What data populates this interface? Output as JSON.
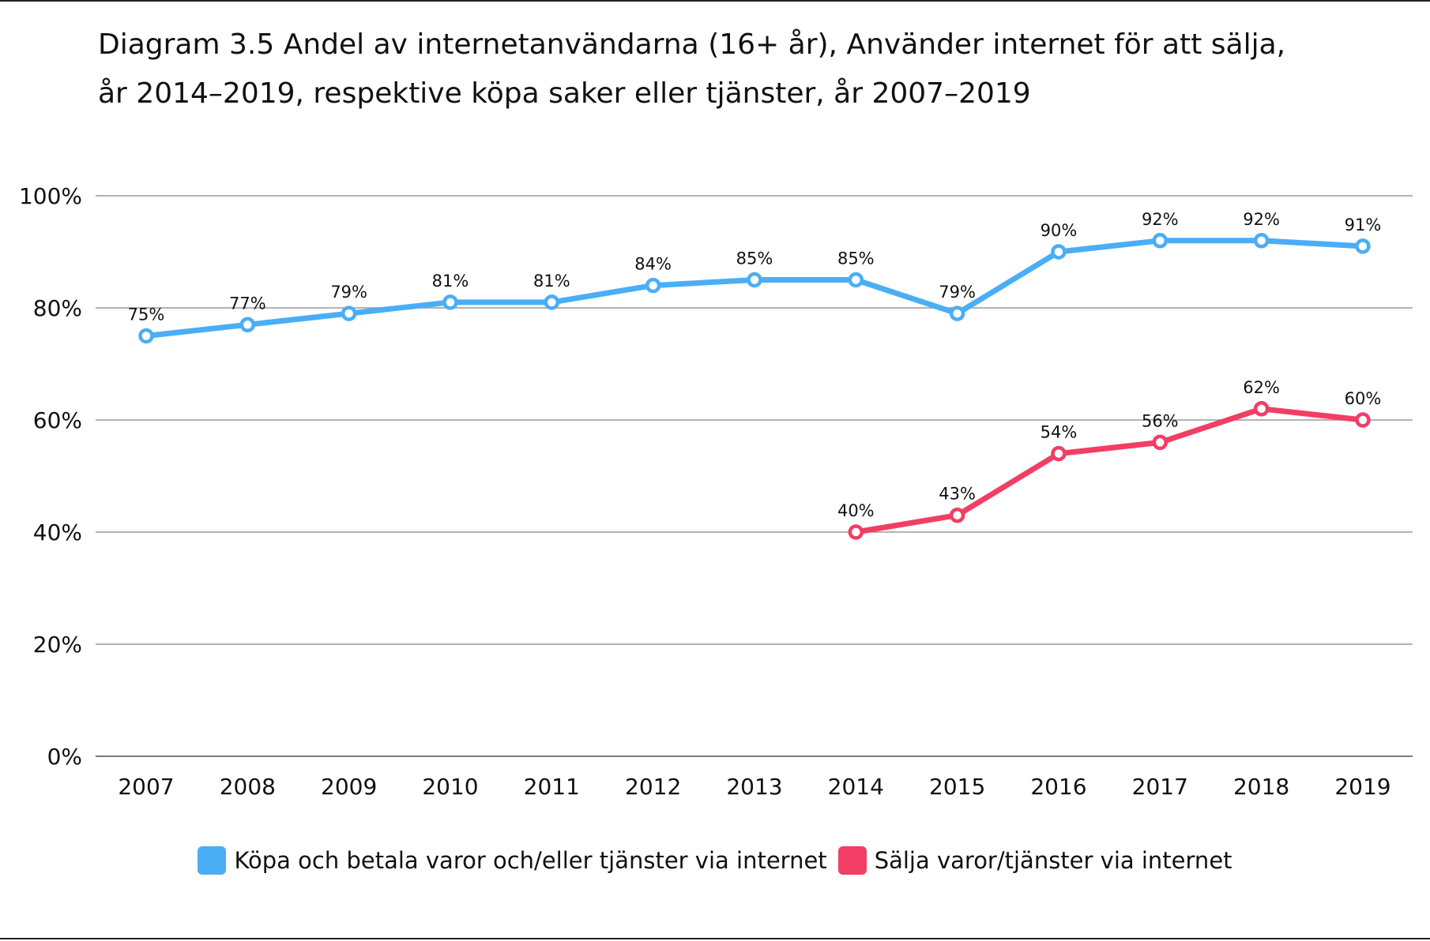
{
  "title": {
    "line1": "Diagram 3.5 Andel av internetanvändarna (16+ år), Använder internet för att sälja,",
    "line2": "år 2014–2019, respektive köpa saker eller tjänster, år 2007–2019"
  },
  "chart_data": {
    "type": "line",
    "title": "Diagram 3.5 Andel av internetanvändarna (16+ år), Använder internet för att sälja, år 2014–2019, respektive köpa saker eller tjänster, år 2007–2019",
    "xlabel": "",
    "ylabel": "",
    "x": [
      "2007",
      "2008",
      "2009",
      "2010",
      "2011",
      "2012",
      "2013",
      "2014",
      "2015",
      "2016",
      "2017",
      "2018",
      "2019"
    ],
    "ylim": [
      0,
      100
    ],
    "yticks": [
      "0%",
      "20%",
      "40%",
      "60%",
      "80%",
      "100%"
    ],
    "grid": true,
    "legend_position": "bottom",
    "series": [
      {
        "name": "Köpa och betala varor och/eller tjänster via internet",
        "color": "#4AAEF5",
        "values": [
          75,
          77,
          79,
          81,
          81,
          84,
          85,
          85,
          79,
          90,
          92,
          92,
          91
        ],
        "labels": [
          "75%",
          "77%",
          "79%",
          "81%",
          "81%",
          "84%",
          "85%",
          "85%",
          "79%",
          "90%",
          "92%",
          "92%",
          "91%"
        ]
      },
      {
        "name": "Sälja varor/tjänster via internet",
        "color": "#F23E64",
        "values": [
          null,
          null,
          null,
          null,
          null,
          null,
          null,
          40,
          43,
          54,
          56,
          62,
          60
        ],
        "labels": [
          null,
          null,
          null,
          null,
          null,
          null,
          null,
          "40%",
          "43%",
          "54%",
          "56%",
          "62%",
          "60%"
        ]
      }
    ]
  },
  "legend": {
    "items": [
      {
        "label": "Köpa och betala varor och/eller tjänster via internet",
        "color": "#4AAEF5"
      },
      {
        "label": "Sälja varor/tjänster via internet",
        "color": "#F23E64"
      }
    ]
  }
}
